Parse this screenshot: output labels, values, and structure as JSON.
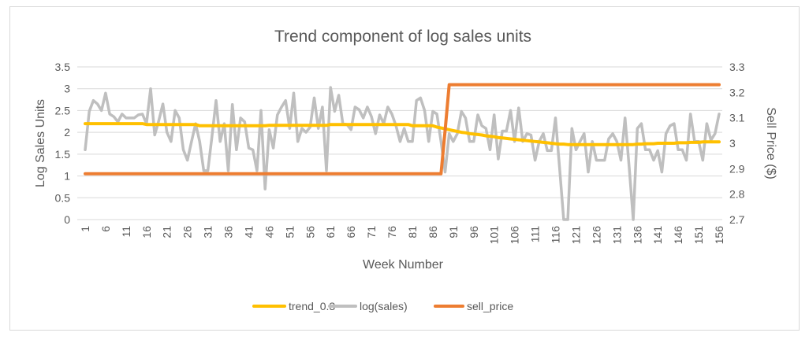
{
  "chart_data": {
    "type": "line",
    "title": "Trend component of log sales units",
    "xlabel": "Week Number",
    "ylabel": "Log Sales Units",
    "y2label": "Sell Price ($)",
    "xlim": [
      1,
      156
    ],
    "ylim": [
      0,
      3.5
    ],
    "y2lim": [
      2.7,
      3.3
    ],
    "grid": true,
    "legend_position": "bottom",
    "x_ticks": [
      "1",
      "6",
      "11",
      "16",
      "21",
      "26",
      "31",
      "36",
      "41",
      "46",
      "51",
      "56",
      "61",
      "66",
      "71",
      "76",
      "81",
      "86",
      "91",
      "96",
      "101",
      "106",
      "111",
      "116",
      "121",
      "126",
      "131",
      "136",
      "141",
      "146",
      "151",
      "156"
    ],
    "y_ticks": [
      "0",
      "0.5",
      "1",
      "1.5",
      "2",
      "2.5",
      "3",
      "3.5"
    ],
    "y2_ticks": [
      "2.7",
      "2.8",
      "2.9",
      "3",
      "3.1",
      "3.2",
      "3.3"
    ],
    "series": [
      {
        "name": "trend_0.3",
        "axis": "left",
        "color": "#FFC000",
        "values": [
          2.2,
          2.2,
          2.2,
          2.2,
          2.2,
          2.2,
          2.2,
          2.2,
          2.2,
          2.2,
          2.2,
          2.2,
          2.2,
          2.2,
          2.2,
          2.18,
          2.18,
          2.18,
          2.18,
          2.18,
          2.18,
          2.18,
          2.18,
          2.18,
          2.18,
          2.18,
          2.18,
          2.18,
          2.15,
          2.15,
          2.15,
          2.15,
          2.15,
          2.15,
          2.15,
          2.15,
          2.15,
          2.15,
          2.15,
          2.15,
          2.15,
          2.15,
          2.15,
          2.15,
          2.15,
          2.16,
          2.16,
          2.16,
          2.16,
          2.16,
          2.16,
          2.16,
          2.16,
          2.16,
          2.16,
          2.16,
          2.16,
          2.16,
          2.16,
          2.16,
          2.18,
          2.18,
          2.18,
          2.18,
          2.18,
          2.18,
          2.18,
          2.18,
          2.18,
          2.18,
          2.18,
          2.18,
          2.18,
          2.18,
          2.18,
          2.18,
          2.18,
          2.18,
          2.18,
          2.18,
          2.15,
          2.15,
          2.15,
          2.15,
          2.15,
          2.15,
          2.12,
          2.1,
          2.08,
          2.06,
          2.04,
          2.02,
          2.0,
          1.99,
          1.97,
          1.96,
          1.95,
          1.94,
          1.92,
          1.91,
          1.9,
          1.88,
          1.87,
          1.86,
          1.85,
          1.84,
          1.83,
          1.82,
          1.81,
          1.8,
          1.79,
          1.78,
          1.77,
          1.76,
          1.75,
          1.74,
          1.73,
          1.73,
          1.72,
          1.72,
          1.72,
          1.72,
          1.72,
          1.72,
          1.72,
          1.72,
          1.72,
          1.72,
          1.72,
          1.72,
          1.72,
          1.72,
          1.72,
          1.72,
          1.72,
          1.73,
          1.73,
          1.74,
          1.74,
          1.74,
          1.75,
          1.75,
          1.75,
          1.75,
          1.75,
          1.76,
          1.76,
          1.76,
          1.77,
          1.77,
          1.77,
          1.78,
          1.78,
          1.78,
          1.78,
          1.78
        ]
      },
      {
        "name": "log(sales)",
        "axis": "left",
        "color": "#BFBFBF",
        "values": [
          1.6,
          2.48,
          2.73,
          2.65,
          2.5,
          2.9,
          2.42,
          2.36,
          2.24,
          2.42,
          2.33,
          2.33,
          2.33,
          2.4,
          2.42,
          2.2,
          3.0,
          1.94,
          2.27,
          2.65,
          2.0,
          1.79,
          2.5,
          2.33,
          1.6,
          1.36,
          1.79,
          2.2,
          1.79,
          1.12,
          1.12,
          1.9,
          2.73,
          1.79,
          2.2,
          1.12,
          2.64,
          1.6,
          2.33,
          2.24,
          1.64,
          1.6,
          1.12,
          2.5,
          0.7,
          2.06,
          1.64,
          2.4,
          2.58,
          2.73,
          2.09,
          2.9,
          1.79,
          2.09,
          2.0,
          2.12,
          2.79,
          2.09,
          2.58,
          1.12,
          3.03,
          2.48,
          2.85,
          2.2,
          2.18,
          2.06,
          2.58,
          2.52,
          2.33,
          2.58,
          2.36,
          1.97,
          2.4,
          2.2,
          2.58,
          2.42,
          2.15,
          1.79,
          2.09,
          1.79,
          1.79,
          2.73,
          2.79,
          2.5,
          1.79,
          2.48,
          2.42,
          1.79,
          1.09,
          1.97,
          1.79,
          1.97,
          2.48,
          2.33,
          1.79,
          1.79,
          2.4,
          2.15,
          2.09,
          1.6,
          2.4,
          1.39,
          2.03,
          2.03,
          2.5,
          1.79,
          2.56,
          1.79,
          1.97,
          1.94,
          1.36,
          1.79,
          1.97,
          1.58,
          1.58,
          2.33,
          1.18,
          0,
          0,
          2.09,
          1.6,
          1.79,
          1.97,
          1.09,
          1.79,
          1.36,
          1.36,
          1.36,
          1.85,
          1.97,
          1.79,
          1.36,
          2.33,
          1.21,
          0,
          2.09,
          2.2,
          1.6,
          1.6,
          1.36,
          1.58,
          1.09,
          1.97,
          2.15,
          2.2,
          1.6,
          1.6,
          1.36,
          2.42,
          1.79,
          1.79,
          1.36,
          2.2,
          1.82,
          1.97,
          2.42
        ]
      },
      {
        "name": "sell_price",
        "axis": "right",
        "color": "#ED7D31",
        "values": [
          2.88,
          2.88,
          2.88,
          2.88,
          2.88,
          2.88,
          2.88,
          2.88,
          2.88,
          2.88,
          2.88,
          2.88,
          2.88,
          2.88,
          2.88,
          2.88,
          2.88,
          2.88,
          2.88,
          2.88,
          2.88,
          2.88,
          2.88,
          2.88,
          2.88,
          2.88,
          2.88,
          2.88,
          2.88,
          2.88,
          2.88,
          2.88,
          2.88,
          2.88,
          2.88,
          2.88,
          2.88,
          2.88,
          2.88,
          2.88,
          2.88,
          2.88,
          2.88,
          2.88,
          2.88,
          2.88,
          2.88,
          2.88,
          2.88,
          2.88,
          2.88,
          2.88,
          2.88,
          2.88,
          2.88,
          2.88,
          2.88,
          2.88,
          2.88,
          2.88,
          2.88,
          2.88,
          2.88,
          2.88,
          2.88,
          2.88,
          2.88,
          2.88,
          2.88,
          2.88,
          2.88,
          2.88,
          2.88,
          2.88,
          2.88,
          2.88,
          2.88,
          2.88,
          2.88,
          2.88,
          2.88,
          2.88,
          2.88,
          2.88,
          2.88,
          2.88,
          2.88,
          2.88,
          3.05,
          3.23,
          3.23,
          3.23,
          3.23,
          3.23,
          3.23,
          3.23,
          3.23,
          3.23,
          3.23,
          3.23,
          3.23,
          3.23,
          3.23,
          3.23,
          3.23,
          3.23,
          3.23,
          3.23,
          3.23,
          3.23,
          3.23,
          3.23,
          3.23,
          3.23,
          3.23,
          3.23,
          3.23,
          3.23,
          3.23,
          3.23,
          3.23,
          3.23,
          3.23,
          3.23,
          3.23,
          3.23,
          3.23,
          3.23,
          3.23,
          3.23,
          3.23,
          3.23,
          3.23,
          3.23,
          3.23,
          3.23,
          3.23,
          3.23,
          3.23,
          3.23,
          3.23,
          3.23,
          3.23,
          3.23,
          3.23,
          3.23,
          3.23,
          3.23,
          3.23,
          3.23,
          3.23,
          3.23,
          3.23,
          3.23,
          3.23,
          3.23
        ]
      }
    ]
  }
}
